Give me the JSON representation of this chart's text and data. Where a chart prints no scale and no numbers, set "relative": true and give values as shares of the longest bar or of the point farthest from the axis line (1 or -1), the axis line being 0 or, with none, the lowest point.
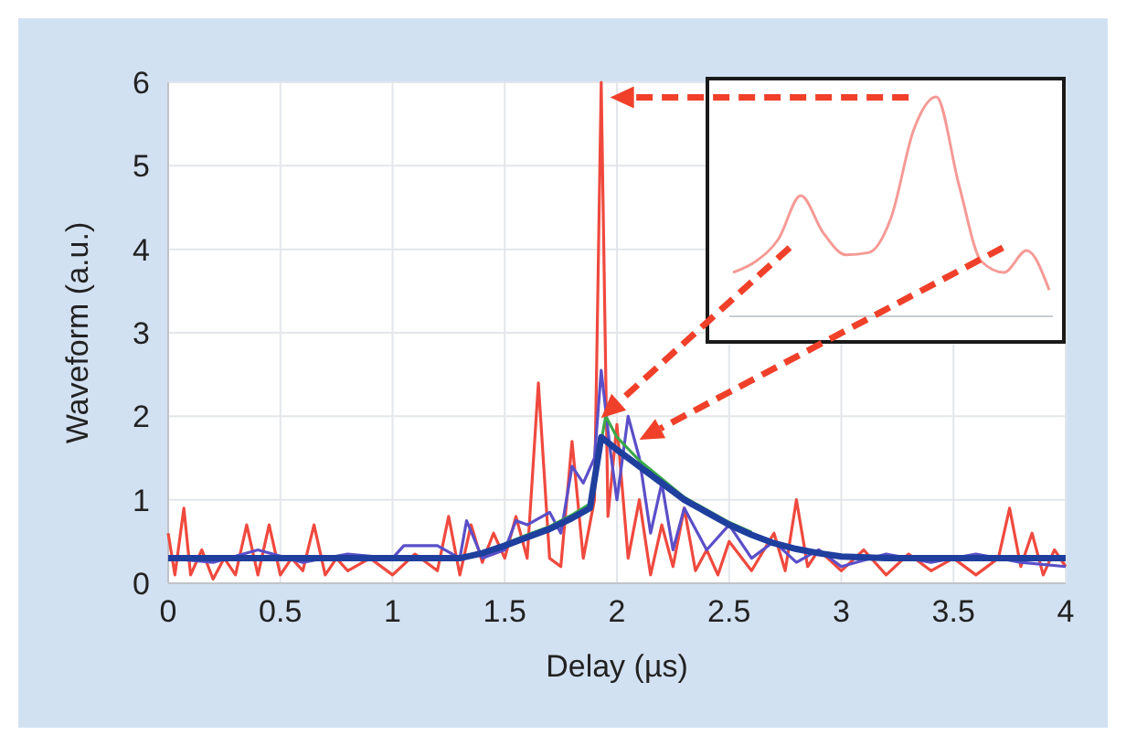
{
  "chart_data": [
    {
      "type": "line",
      "xlabel": "Delay (µs)",
      "ylabel": "Waveform (a.u.)",
      "xlim": [
        0,
        4
      ],
      "ylim": [
        0,
        6
      ],
      "xticks": [
        0,
        0.5,
        1,
        1.5,
        2,
        2.5,
        3,
        3.5,
        4
      ],
      "yticks": [
        0,
        1,
        2,
        3,
        4,
        5,
        6
      ],
      "grid": true,
      "series": [
        {
          "color": "#f0493e",
          "x": [
            0,
            0.03,
            0.07,
            0.1,
            0.15,
            0.2,
            0.25,
            0.3,
            0.35,
            0.4,
            0.45,
            0.5,
            0.55,
            0.6,
            0.65,
            0.7,
            0.75,
            0.8,
            0.9,
            1.0,
            1.1,
            1.2,
            1.25,
            1.3,
            1.35,
            1.4,
            1.45,
            1.5,
            1.55,
            1.6,
            1.65,
            1.7,
            1.75,
            1.8,
            1.85,
            1.9,
            1.93,
            1.96,
            2.0,
            2.05,
            2.1,
            2.15,
            2.2,
            2.25,
            2.3,
            2.35,
            2.4,
            2.45,
            2.5,
            2.6,
            2.7,
            2.75,
            2.8,
            2.85,
            2.9,
            3.0,
            3.1,
            3.2,
            3.3,
            3.4,
            3.5,
            3.6,
            3.7,
            3.75,
            3.8,
            3.85,
            3.9,
            3.95,
            4.0
          ],
          "values": [
            0.6,
            0.1,
            0.9,
            0.1,
            0.4,
            0.05,
            0.3,
            0.1,
            0.7,
            0.1,
            0.7,
            0.1,
            0.3,
            0.15,
            0.7,
            0.1,
            0.3,
            0.15,
            0.3,
            0.1,
            0.35,
            0.15,
            0.8,
            0.1,
            0.7,
            0.25,
            0.6,
            0.3,
            0.8,
            0.3,
            2.4,
            0.3,
            0.2,
            1.7,
            0.3,
            1.0,
            6.0,
            0.8,
            1.9,
            0.3,
            1.0,
            0.1,
            0.7,
            0.2,
            0.9,
            0.15,
            0.4,
            0.1,
            0.5,
            0.15,
            0.6,
            0.15,
            1.0,
            0.2,
            0.4,
            0.15,
            0.4,
            0.1,
            0.35,
            0.15,
            0.3,
            0.1,
            0.3,
            0.9,
            0.2,
            0.6,
            0.1,
            0.4,
            0.2
          ]
        },
        {
          "color": "#5a4fc8",
          "x": [
            0,
            0.2,
            0.4,
            0.6,
            0.8,
            1.0,
            1.05,
            1.2,
            1.3,
            1.33,
            1.4,
            1.5,
            1.55,
            1.6,
            1.7,
            1.75,
            1.8,
            1.85,
            1.9,
            1.93,
            1.97,
            2.0,
            2.05,
            2.1,
            2.15,
            2.2,
            2.25,
            2.3,
            2.4,
            2.5,
            2.6,
            2.7,
            2.8,
            2.9,
            3.0,
            3.2,
            3.4,
            3.6,
            3.8,
            4.0
          ],
          "values": [
            0.3,
            0.25,
            0.4,
            0.25,
            0.35,
            0.3,
            0.45,
            0.45,
            0.3,
            0.75,
            0.3,
            0.4,
            0.75,
            0.7,
            0.85,
            0.6,
            1.4,
            1.2,
            1.5,
            2.55,
            1.6,
            1.0,
            2.0,
            1.5,
            0.6,
            1.2,
            0.4,
            0.9,
            0.4,
            0.7,
            0.3,
            0.5,
            0.25,
            0.4,
            0.2,
            0.35,
            0.25,
            0.35,
            0.25,
            0.2
          ]
        },
        {
          "color": "#3aa84a",
          "x": [
            1.5,
            1.6,
            1.7,
            1.8,
            1.88,
            1.95,
            2.0,
            2.1,
            2.2,
            2.3,
            2.4,
            2.5,
            2.6
          ],
          "values": [
            0.47,
            0.58,
            0.68,
            0.82,
            0.95,
            2.0,
            1.75,
            1.47,
            1.25,
            1.03,
            0.88,
            0.73,
            0.61
          ]
        },
        {
          "color": "#1f3f9e",
          "x": [
            0,
            1.3,
            1.4,
            1.5,
            1.6,
            1.7,
            1.8,
            1.88,
            1.93,
            2.0,
            2.1,
            2.2,
            2.3,
            2.4,
            2.5,
            2.6,
            2.7,
            2.8,
            2.9,
            3.0,
            3.2,
            4.0
          ],
          "values": [
            0.3,
            0.3,
            0.36,
            0.45,
            0.55,
            0.65,
            0.78,
            0.9,
            1.75,
            1.6,
            1.4,
            1.2,
            1.0,
            0.85,
            0.7,
            0.58,
            0.48,
            0.41,
            0.36,
            0.32,
            0.3,
            0.3
          ]
        }
      ]
    },
    {
      "type": "line",
      "relative": true,
      "categories": [
        null,
        null,
        null,
        null,
        null,
        null,
        null,
        null,
        null,
        null,
        null,
        null,
        null,
        null,
        null
      ],
      "series": [
        {
          "color": "#f59a96",
          "values": [
            0.2,
            0.25,
            0.35,
            0.55,
            0.38,
            0.28,
            0.29,
            0.45,
            0.85,
            1,
            0.6,
            0.25,
            0.2,
            0.3,
            0.12
          ]
        }
      ]
    }
  ]
}
